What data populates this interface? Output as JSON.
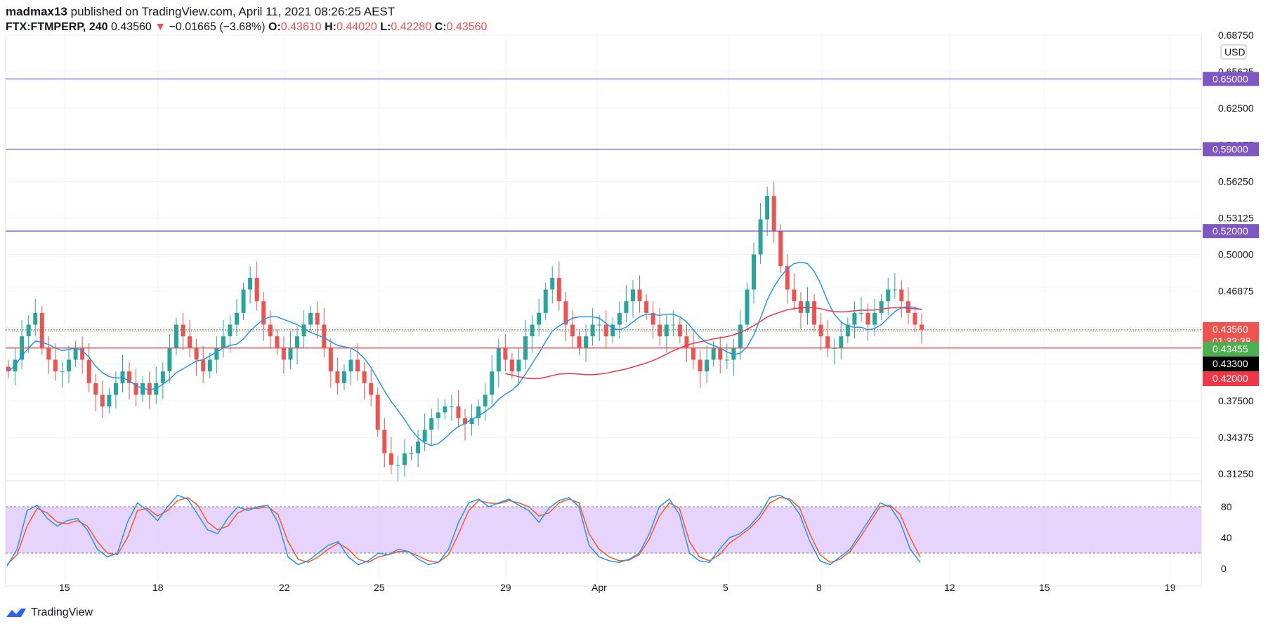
{
  "header": {
    "author": "madmax13",
    "published_text": "published on TradingView.com, April 11, 2021 08:26:25 AEST",
    "symbol": "FTX:FTMPERP, 240",
    "last": "0.43560",
    "change_arrow": "▼",
    "change": "−0.01665 (−3.68%)",
    "o_label": "O:",
    "o": "0.43610",
    "h_label": "H:",
    "h": "0.44020",
    "l_label": "L:",
    "l": "0.42280",
    "c_label": "C:",
    "c": "0.43560"
  },
  "footer": {
    "brand": "TradingView"
  },
  "colors": {
    "up": "#26a69a",
    "down": "#ef5350",
    "ma_blue": "#2196f3",
    "ma_red": "#f23645",
    "level": "#7e57c2",
    "stoch_band": "#e1c9fb",
    "k_line": "#2196f3",
    "d_line": "#ff5722"
  },
  "chart_data": {
    "type": "candlestick",
    "currency_label": "USD",
    "y_ticks": [
      "0.68750",
      "0.65625",
      "0.62500",
      "0.59375",
      "0.56250",
      "0.53125",
      "0.50000",
      "0.46875",
      "0.43750",
      "0.40625",
      "0.37500",
      "0.34375",
      "0.31250"
    ],
    "x_ticks": [
      "15",
      "18",
      "22",
      "25",
      "29",
      "Apr",
      "5",
      "8",
      "12",
      "15",
      "19"
    ],
    "levels": [
      {
        "label": "0.65000",
        "value": 0.65,
        "color": "#7e57c2"
      },
      {
        "label": "0.59000",
        "value": 0.59,
        "color": "#7e57c2"
      },
      {
        "label": "0.52000",
        "value": 0.52,
        "color": "#7e57c2"
      },
      {
        "label": "0.42000",
        "value": 0.42,
        "color": "#ef5350"
      }
    ],
    "price_tags": [
      {
        "label": "0.43560",
        "sub": "01:33:38",
        "value": 0.4356,
        "color": "#ef5350"
      },
      {
        "label": "0.43455",
        "value": 0.43455,
        "color": "#4caf50"
      },
      {
        "label": "0.43300",
        "value": 0.433,
        "color": "#000000"
      },
      {
        "label": "0.42000",
        "value": 0.42,
        "color": "#f23645"
      }
    ],
    "close_series": [
      0.4,
      0.41,
      0.43,
      0.44,
      0.45,
      0.42,
      0.41,
      0.4,
      0.4,
      0.41,
      0.42,
      0.41,
      0.39,
      0.38,
      0.37,
      0.38,
      0.39,
      0.4,
      0.39,
      0.38,
      0.39,
      0.38,
      0.39,
      0.4,
      0.42,
      0.44,
      0.43,
      0.42,
      0.41,
      0.4,
      0.41,
      0.42,
      0.43,
      0.44,
      0.45,
      0.47,
      0.48,
      0.46,
      0.44,
      0.43,
      0.42,
      0.41,
      0.42,
      0.43,
      0.44,
      0.45,
      0.44,
      0.42,
      0.4,
      0.39,
      0.4,
      0.41,
      0.4,
      0.39,
      0.38,
      0.35,
      0.33,
      0.32,
      0.32,
      0.33,
      0.33,
      0.34,
      0.35,
      0.36,
      0.365,
      0.37,
      0.37,
      0.36,
      0.355,
      0.36,
      0.37,
      0.38,
      0.4,
      0.42,
      0.41,
      0.4,
      0.41,
      0.43,
      0.44,
      0.45,
      0.47,
      0.48,
      0.46,
      0.44,
      0.43,
      0.42,
      0.43,
      0.44,
      0.44,
      0.43,
      0.44,
      0.45,
      0.46,
      0.47,
      0.46,
      0.45,
      0.44,
      0.43,
      0.44,
      0.44,
      0.43,
      0.42,
      0.41,
      0.4,
      0.41,
      0.42,
      0.41,
      0.41,
      0.42,
      0.44,
      0.47,
      0.5,
      0.53,
      0.55,
      0.52,
      0.49,
      0.47,
      0.46,
      0.45,
      0.46,
      0.44,
      0.43,
      0.42,
      0.42,
      0.43,
      0.44,
      0.45,
      0.45,
      0.44,
      0.45,
      0.46,
      0.47,
      0.47,
      0.46,
      0.45,
      0.44,
      0.4356
    ],
    "stoch_levels": [
      "80",
      "40",
      "0"
    ],
    "stoch_k": [
      3,
      25,
      75,
      82,
      65,
      55,
      62,
      65,
      50,
      25,
      15,
      20,
      60,
      85,
      75,
      62,
      80,
      95,
      90,
      70,
      50,
      45,
      65,
      80,
      75,
      80,
      82,
      60,
      15,
      5,
      10,
      20,
      30,
      35,
      15,
      5,
      10,
      20,
      18,
      25,
      22,
      12,
      5,
      8,
      25,
      60,
      85,
      90,
      80,
      85,
      90,
      82,
      75,
      60,
      78,
      88,
      92,
      80,
      30,
      15,
      10,
      8,
      12,
      20,
      45,
      80,
      90,
      70,
      20,
      10,
      8,
      25,
      40,
      45,
      55,
      70,
      92,
      95,
      88,
      70,
      35,
      10,
      5,
      15,
      25,
      45,
      65,
      85,
      80,
      60,
      25,
      8
    ],
    "stoch_d": [
      5,
      18,
      55,
      78,
      72,
      60,
      58,
      62,
      55,
      35,
      20,
      18,
      40,
      75,
      78,
      68,
      75,
      88,
      92,
      82,
      60,
      50,
      55,
      72,
      78,
      78,
      80,
      70,
      35,
      12,
      8,
      15,
      25,
      33,
      25,
      12,
      8,
      15,
      18,
      22,
      22,
      16,
      10,
      8,
      18,
      45,
      75,
      88,
      85,
      84,
      88,
      85,
      80,
      68,
      72,
      85,
      90,
      85,
      45,
      25,
      15,
      10,
      11,
      18,
      38,
      68,
      85,
      78,
      35,
      15,
      10,
      18,
      33,
      42,
      52,
      65,
      85,
      92,
      90,
      78,
      45,
      18,
      8,
      12,
      22,
      40,
      60,
      80,
      82,
      70,
      40,
      15
    ]
  }
}
